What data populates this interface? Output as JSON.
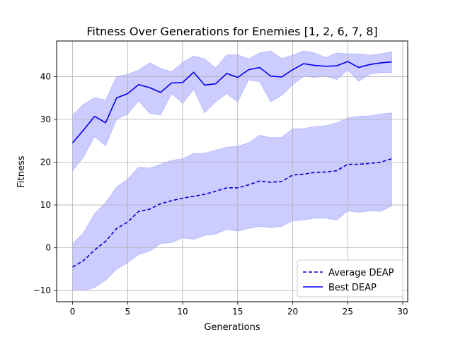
{
  "chart_data": {
    "type": "line",
    "title": "Fitness Over Generations for Enemies [1, 2, 6, 7, 8]",
    "xlabel": "Generations",
    "ylabel": "Fitness",
    "xlim": [
      -1.45,
      30.45
    ],
    "ylim": [
      -12.6,
      48.3
    ],
    "xticks": [
      0,
      5,
      10,
      15,
      20,
      25,
      30
    ],
    "yticks": [
      -10,
      0,
      10,
      20,
      30,
      40
    ],
    "grid": true,
    "legend_position": "lower-right",
    "x": [
      0,
      1,
      2,
      3,
      4,
      5,
      6,
      7,
      8,
      9,
      10,
      11,
      12,
      13,
      14,
      15,
      16,
      17,
      18,
      19,
      20,
      21,
      22,
      23,
      24,
      25,
      26,
      27,
      28,
      29
    ],
    "series": [
      {
        "name": "Average DEAP",
        "style": "dashed",
        "color": "#0000cc",
        "values": [
          -4.5,
          -3.0,
          -0.5,
          1.5,
          4.5,
          6.0,
          8.5,
          9.0,
          10.3,
          11.0,
          11.6,
          12.0,
          12.5,
          13.2,
          14.0,
          14.0,
          14.7,
          15.6,
          15.3,
          15.5,
          17.0,
          17.2,
          17.6,
          17.7,
          18.0,
          19.5,
          19.5,
          19.7,
          20.0,
          20.8
        ],
        "band_upper": [
          1.0,
          3.5,
          8.0,
          10.5,
          14.2,
          16.0,
          18.8,
          18.6,
          19.5,
          20.4,
          20.8,
          22.0,
          22.1,
          22.8,
          23.5,
          23.7,
          24.5,
          26.3,
          25.7,
          25.8,
          27.8,
          27.8,
          28.3,
          28.5,
          29.2,
          30.3,
          30.7,
          30.8,
          31.3,
          31.5
        ],
        "band_lower": [
          -10.0,
          -10.0,
          -9.3,
          -7.6,
          -5.0,
          -3.5,
          -1.6,
          -0.8,
          1.0,
          1.2,
          2.3,
          2.0,
          2.9,
          3.2,
          4.3,
          3.9,
          4.5,
          5.0,
          4.7,
          5.0,
          6.3,
          6.5,
          6.9,
          6.9,
          6.5,
          8.6,
          8.3,
          8.6,
          8.5,
          9.8
        ]
      },
      {
        "name": "Best DEAP",
        "style": "solid",
        "color": "#0000ee",
        "values": [
          24.5,
          27.5,
          30.7,
          29.2,
          35.0,
          36.0,
          38.1,
          37.4,
          36.3,
          38.5,
          38.6,
          41.0,
          38.0,
          38.3,
          40.7,
          39.8,
          41.6,
          42.1,
          40.1,
          39.9,
          41.6,
          43.0,
          42.6,
          42.4,
          42.5,
          43.5,
          42.1,
          42.8,
          43.2,
          43.4
        ],
        "band_upper": [
          31.0,
          33.5,
          35.1,
          34.5,
          40.0,
          40.5,
          41.5,
          43.2,
          41.9,
          41.1,
          43.3,
          44.8,
          44.1,
          42.0,
          45.0,
          45.1,
          44.1,
          45.5,
          46.0,
          44.2,
          45.0,
          46.0,
          45.5,
          44.4,
          45.5,
          45.3,
          45.3,
          45.0,
          45.3,
          45.8
        ],
        "band_lower": [
          18.0,
          21.2,
          26.0,
          23.8,
          30.0,
          31.2,
          34.3,
          31.4,
          31.0,
          36.0,
          33.7,
          37.0,
          31.5,
          34.1,
          36.0,
          34.1,
          39.2,
          38.8,
          34.1,
          35.6,
          38.1,
          40.0,
          39.8,
          40.1,
          39.3,
          41.5,
          38.9,
          40.5,
          40.9,
          40.9
        ]
      }
    ],
    "band_color": "#ccccff"
  }
}
